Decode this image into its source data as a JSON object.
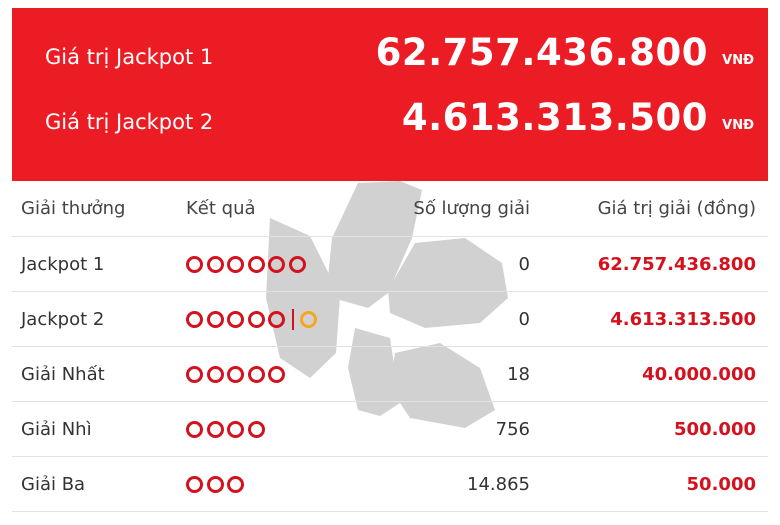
{
  "jackpots": [
    {
      "label": "Giá trị Jackpot 1",
      "value": "62.757.436.800",
      "unit": "VNĐ"
    },
    {
      "label": "Giá trị Jackpot 2",
      "value": "4.613.313.500",
      "unit": "VNĐ"
    }
  ],
  "table": {
    "headers": {
      "prize": "Giải thưởng",
      "result": "Kết quả",
      "count": "Số lượng giải",
      "value": "Giá trị giải (đồng)"
    },
    "rows": [
      {
        "name": "Jackpot 1",
        "main_balls": 6,
        "bonus_balls": 0,
        "count": "0",
        "value": "62.757.436.800"
      },
      {
        "name": "Jackpot 2",
        "main_balls": 5,
        "bonus_balls": 1,
        "count": "0",
        "value": "4.613.313.500"
      },
      {
        "name": "Giải Nhất",
        "main_balls": 5,
        "bonus_balls": 0,
        "count": "18",
        "value": "40.000.000"
      },
      {
        "name": "Giải Nhì",
        "main_balls": 4,
        "bonus_balls": 0,
        "count": "756",
        "value": "500.000"
      },
      {
        "name": "Giải Ba",
        "main_balls": 3,
        "bonus_balls": 0,
        "count": "14.865",
        "value": "50.000"
      }
    ]
  },
  "colors": {
    "banner": "#ec1c24",
    "ball": "#d4121e",
    "bonus_ball": "#f5a623",
    "prize_text": "#d4121e"
  }
}
